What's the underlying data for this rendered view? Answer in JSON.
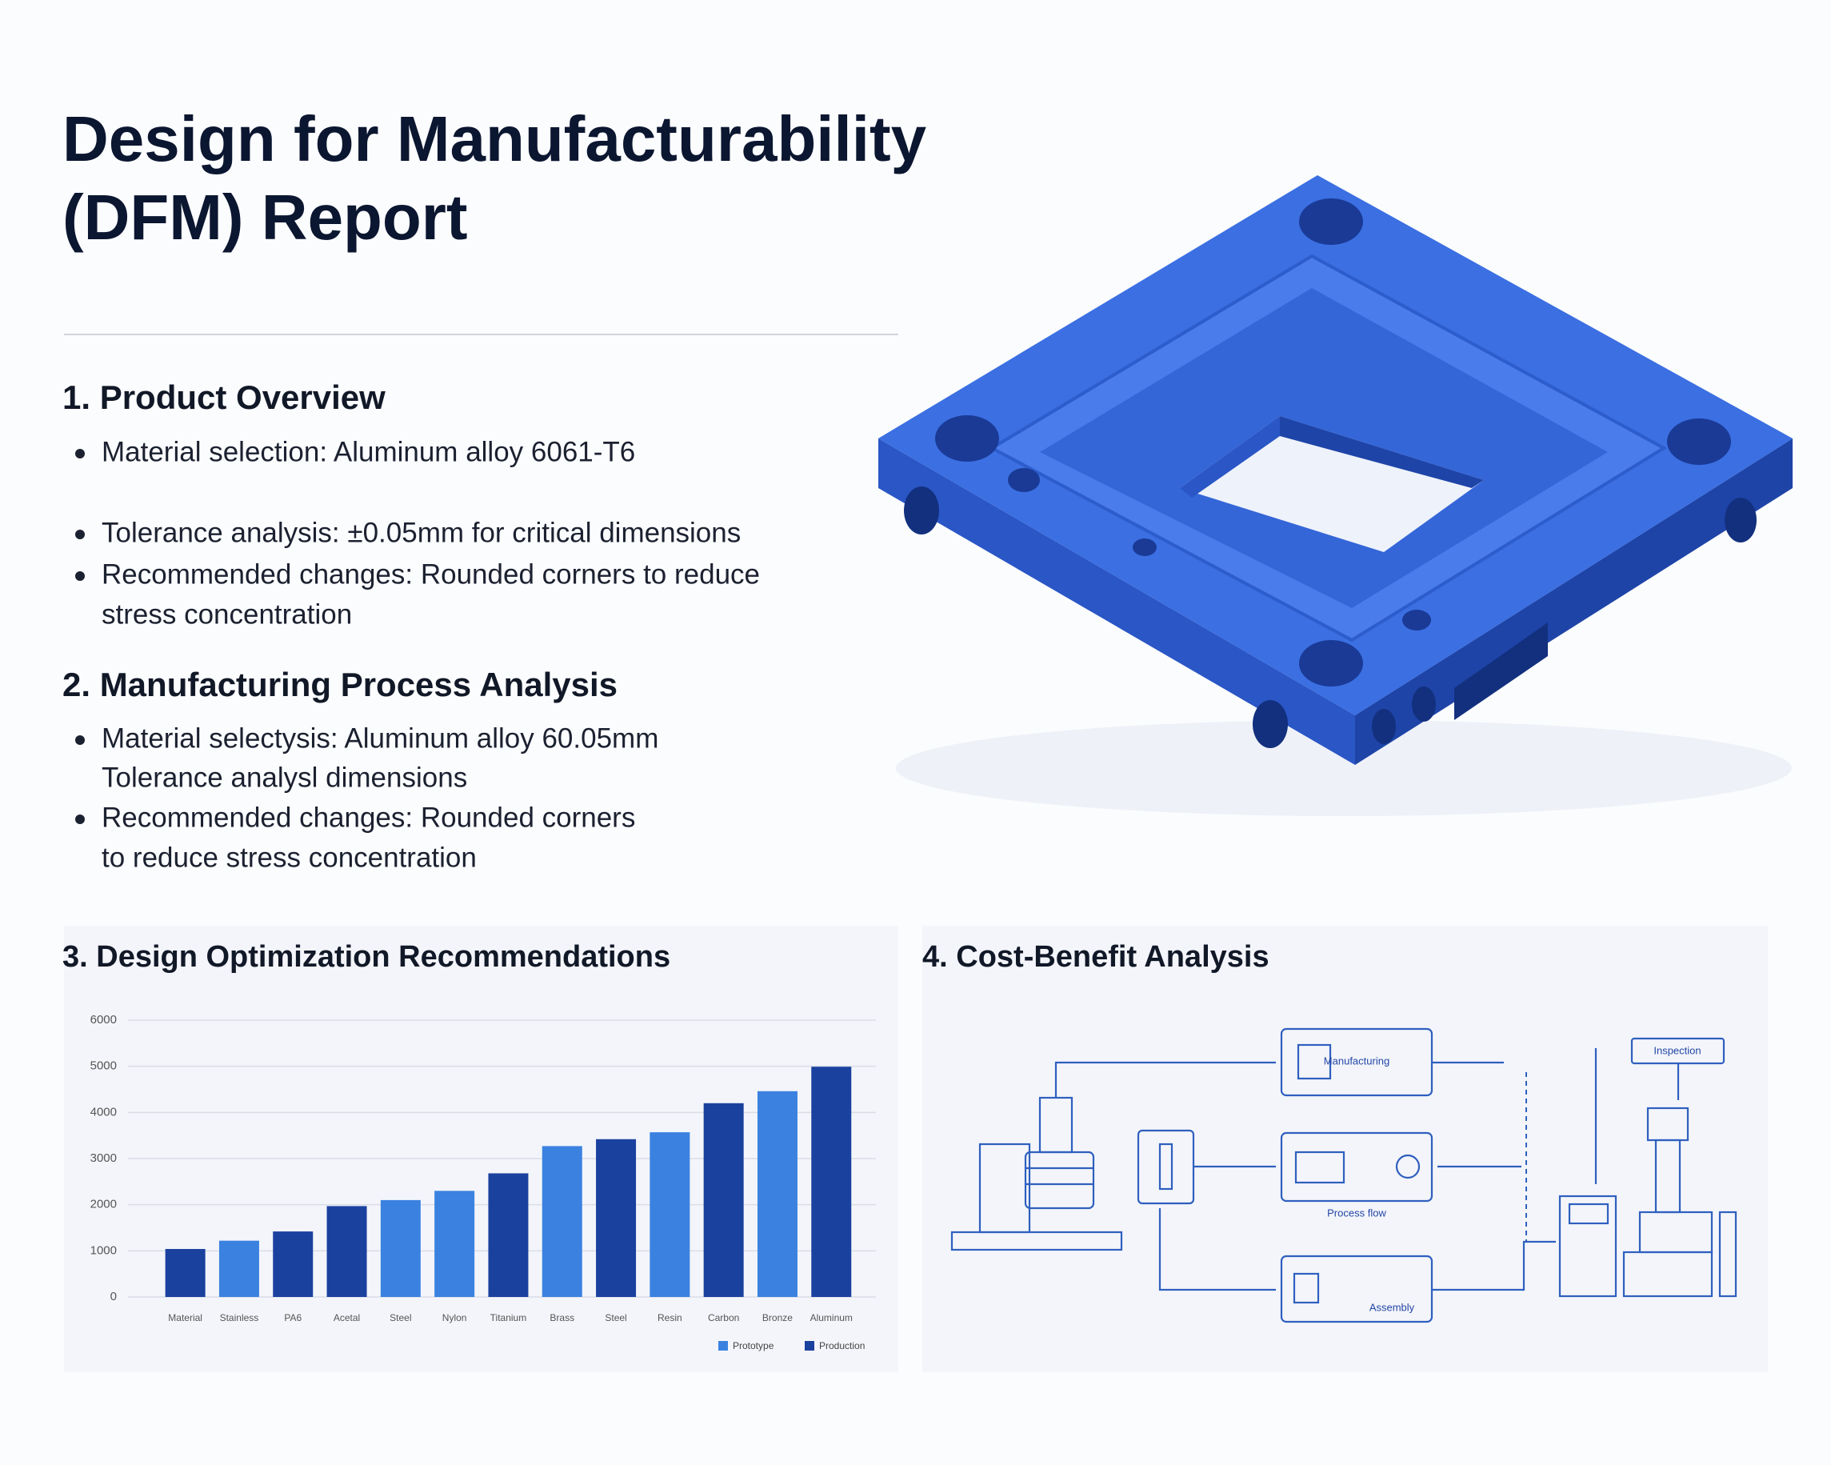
{
  "header": {
    "title_lines": [
      "Design for Manufacturability",
      "(DFM) Report"
    ]
  },
  "sections": [
    {
      "heading": "1. Product Overview",
      "bullets": [
        [
          "Material selection: Aluminum alloy 6061-T6"
        ],
        [
          "Tolerance analysis: ±0.05mm for critical dimensions"
        ],
        [
          "Recommended changes: Rounded corners to reduce",
          "stress concentration"
        ]
      ]
    },
    {
      "heading": "2. Manufacturing Process Analysis",
      "bullets": [
        [
          "Material selectysis: Aluminum alloy 60.05mm",
          "Tolerance analysl dimensions"
        ],
        [
          "Recommended changes: Rounded corners",
          "to reduce stress concentration"
        ]
      ]
    }
  ],
  "chart_data": {
    "type": "bar",
    "title": "3. Design Optimization Recommendations",
    "categories": [
      "Material",
      "Stainless",
      "PA6",
      "Acetal",
      "Steel",
      "Nylon",
      "Titanium",
      "Brass",
      "Steel",
      "Resin",
      "Carbon",
      "Bronze",
      "Aluminum"
    ],
    "series": [
      {
        "name": "Prototype",
        "color": "#3b82e0",
        "values": [
          null,
          1220,
          null,
          null,
          2100,
          2300,
          null,
          3270,
          null,
          3570,
          null,
          4460,
          null
        ]
      },
      {
        "name": "Production",
        "color": "#1b419f",
        "values": [
          1040,
          null,
          1420,
          1970,
          null,
          null,
          2680,
          null,
          3420,
          null,
          4200,
          null,
          4990
        ]
      }
    ],
    "ylim": [
      0,
      6000
    ],
    "yticks": [
      0,
      1000,
      2000,
      3000,
      4000,
      5000,
      6000
    ],
    "grid": true,
    "legend": "bottom-right"
  },
  "diagram": {
    "title": "4. Cost-Benefit Analysis",
    "nodes": [
      {
        "label": "Manufacturing"
      },
      {
        "label": "Process flow"
      },
      {
        "label": "Assembly"
      },
      {
        "label": "Inspection"
      }
    ]
  }
}
